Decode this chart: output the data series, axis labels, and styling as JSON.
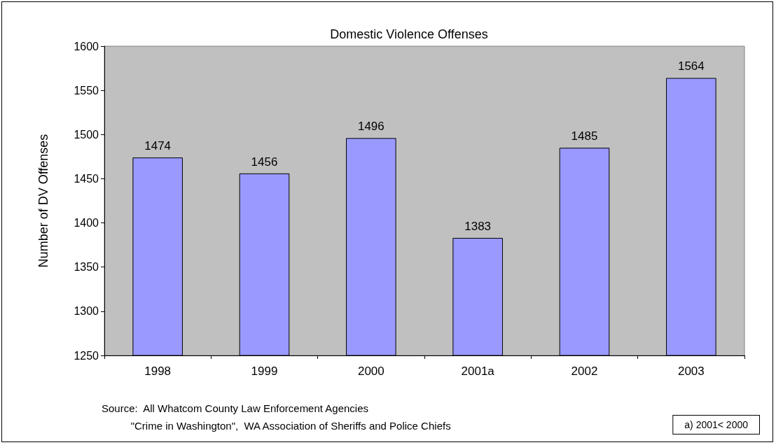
{
  "chart_data": {
    "type": "bar",
    "title": "Domestic Violence Offenses",
    "ylabel": "Number of DV Offenses",
    "categories": [
      "1998",
      "1999",
      "2000",
      "2001a",
      "2002",
      "2003"
    ],
    "values": [
      1474,
      1456,
      1496,
      1383,
      1485,
      1564
    ],
    "color": "#9999ff",
    "ylim": [
      1250,
      1600
    ],
    "yticks": [
      1250,
      1300,
      1350,
      1400,
      1450,
      1500,
      1550,
      1600
    ],
    "grid": false,
    "data_labels": true,
    "annotations": [
      "Source:  All Whatcom County Law Enforcement Agencies\n          \"Crime in Washington\",  WA Association of Sheriffs and Police Chiefs",
      "a) 2001< 2000"
    ]
  }
}
